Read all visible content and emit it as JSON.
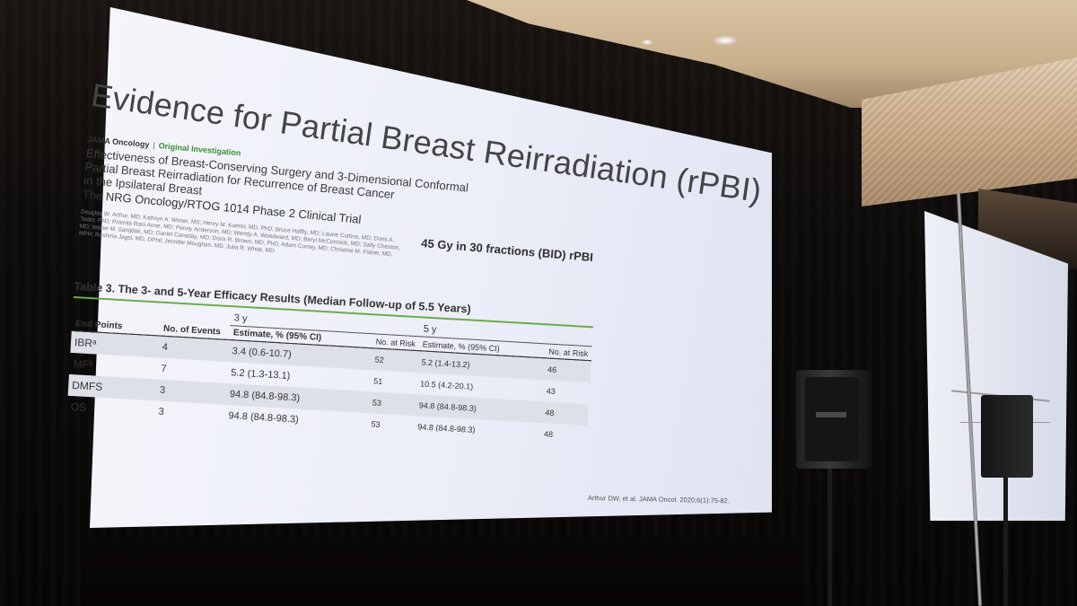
{
  "slide": {
    "title": "Evidence for Partial Breast Reirradiation (rPBI)",
    "journal": "JAMA Oncology",
    "journal_separator": "|",
    "article_type": "Original Investigation",
    "paper_title_lines": [
      "Effectiveness of Breast-Conserving Surgery and 3-Dimensional Conformal",
      "Partial Breast Reirradiation for Recurrence of Breast Cancer",
      "in the Ipsilateral Breast"
    ],
    "trial": "The NRG Oncology/RTOG 1014 Phase 2 Clinical Trial",
    "authors": "Douglas W. Arthur, MD; Kathryn A. Winter, MS; Henry M. Kuerer, MD, PhD; Bruce Haffty, MD; Laurie Cuttino, MD; Doris A. Todor, PhD; Pramila Rani Anne, MD; Penny Anderson, MD; Wendy A. Woodward, MD; Beryl McCormick, MD; Sally Cheston, MD; Walter M. Sahijdak, MD; Daniel Canaday, MD; Doris R. Brown, MD, PhD; Adam Currey, MD; Christine M. Fisher, MD, MPH; Reshma Jagsi, MD, DPhil; Jennifer Moughan, MS; Julia R. White, MD",
    "dose_text": "45 Gy in 30 fractions (BID) rPBI",
    "table_title": "Table 3. The 3- and 5-Year Efficacy Results (Median Follow-up of 5.5 Years)",
    "group_3y": "3 y",
    "group_5y": "5 y",
    "headers": {
      "endpoints": "End Points",
      "events": "No. of Events",
      "estimate_3y": "Estimate, % (95% CI)",
      "risk_3y": "No. at Risk",
      "estimate_5y": "Estimate, % (95% CI)",
      "risk_5y": "No. at Risk"
    },
    "rows": [
      {
        "endpoint": "IBRᵃ",
        "events": "4",
        "est3": "3.4 (0.6-10.7)",
        "risk3": "52",
        "est5": "5.2 (1.4-13.2)",
        "risk5": "46"
      },
      {
        "endpoint": "MFᵇ",
        "events": "7",
        "est3": "5.2 (1.3-13.1)",
        "risk3": "51",
        "est5": "10.5 (4.2-20.1)",
        "risk5": "43"
      },
      {
        "endpoint": "DMFS",
        "events": "3",
        "est3": "94.8 (84.8-98.3)",
        "risk3": "53",
        "est5": "94.8 (84.8-98.3)",
        "risk5": "48"
      },
      {
        "endpoint": "OS",
        "events": "3",
        "est3": "94.8 (84.8-98.3)",
        "risk3": "53",
        "est5": "94.8 (84.8-98.3)",
        "risk5": "48"
      }
    ],
    "citation": "Arthur DW, et al. JAMA Oncol. 2020;6(1):75-82."
  },
  "colors": {
    "screen": "#eceef8",
    "accent_green": "#6cab4a",
    "room_dark": "#0b0908",
    "ceiling": "#d8c3a3"
  }
}
